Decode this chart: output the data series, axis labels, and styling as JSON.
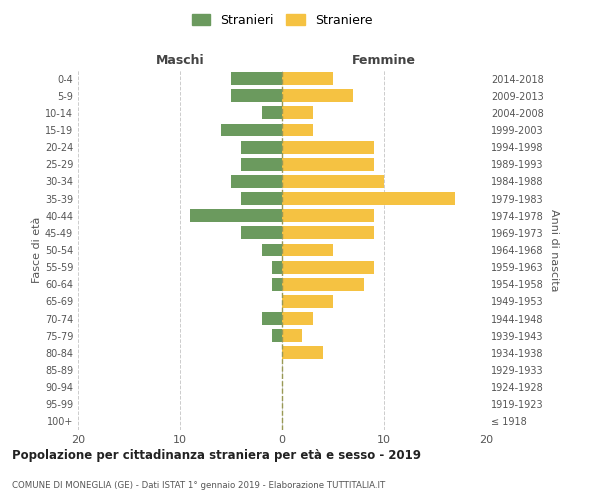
{
  "age_groups": [
    "100+",
    "95-99",
    "90-94",
    "85-89",
    "80-84",
    "75-79",
    "70-74",
    "65-69",
    "60-64",
    "55-59",
    "50-54",
    "45-49",
    "40-44",
    "35-39",
    "30-34",
    "25-29",
    "20-24",
    "15-19",
    "10-14",
    "5-9",
    "0-4"
  ],
  "birth_years": [
    "≤ 1918",
    "1919-1923",
    "1924-1928",
    "1929-1933",
    "1934-1938",
    "1939-1943",
    "1944-1948",
    "1949-1953",
    "1954-1958",
    "1959-1963",
    "1964-1968",
    "1969-1973",
    "1974-1978",
    "1979-1983",
    "1984-1988",
    "1989-1993",
    "1994-1998",
    "1999-2003",
    "2004-2008",
    "2009-2013",
    "2014-2018"
  ],
  "maschi": [
    0,
    0,
    0,
    0,
    0,
    1,
    2,
    0,
    1,
    1,
    2,
    4,
    9,
    4,
    5,
    4,
    4,
    6,
    2,
    5,
    5
  ],
  "femmine": [
    0,
    0,
    0,
    0,
    4,
    2,
    3,
    5,
    8,
    9,
    5,
    9,
    9,
    17,
    10,
    9,
    9,
    3,
    3,
    7,
    5
  ],
  "maschi_color": "#6b9a5e",
  "femmine_color": "#f5c242",
  "title": "Popolazione per cittadinanza straniera per età e sesso - 2019",
  "subtitle": "COMUNE DI MONEGLIA (GE) - Dati ISTAT 1° gennaio 2019 - Elaborazione TUTTITALIA.IT",
  "xlabel_maschi": "Maschi",
  "xlabel_femmine": "Femmine",
  "ylabel_left": "Fasce di età",
  "ylabel_right": "Anni di nascita",
  "legend_maschi": "Stranieri",
  "legend_femmine": "Straniere",
  "xlim": 20,
  "bg_color": "#ffffff",
  "grid_color": "#cccccc"
}
